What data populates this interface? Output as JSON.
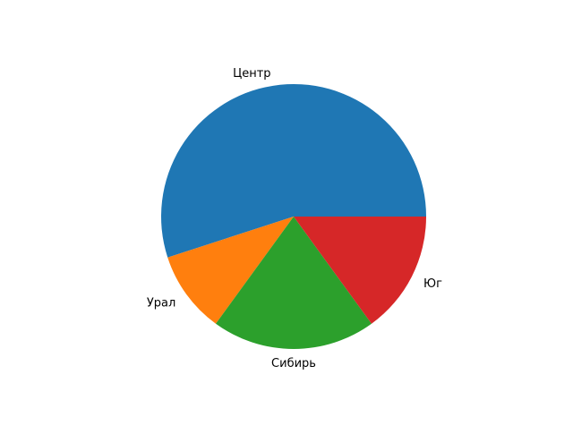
{
  "chart_data": {
    "type": "pie",
    "categories": [
      "Центр",
      "Урал",
      "Сибирь",
      "Юг"
    ],
    "values": [
      55,
      10,
      20,
      15
    ],
    "colors": [
      "#1f77b4",
      "#ff7f0e",
      "#2ca02c",
      "#d62728"
    ],
    "start_angle": 0,
    "direction": "counterclockwise",
    "title": ""
  }
}
